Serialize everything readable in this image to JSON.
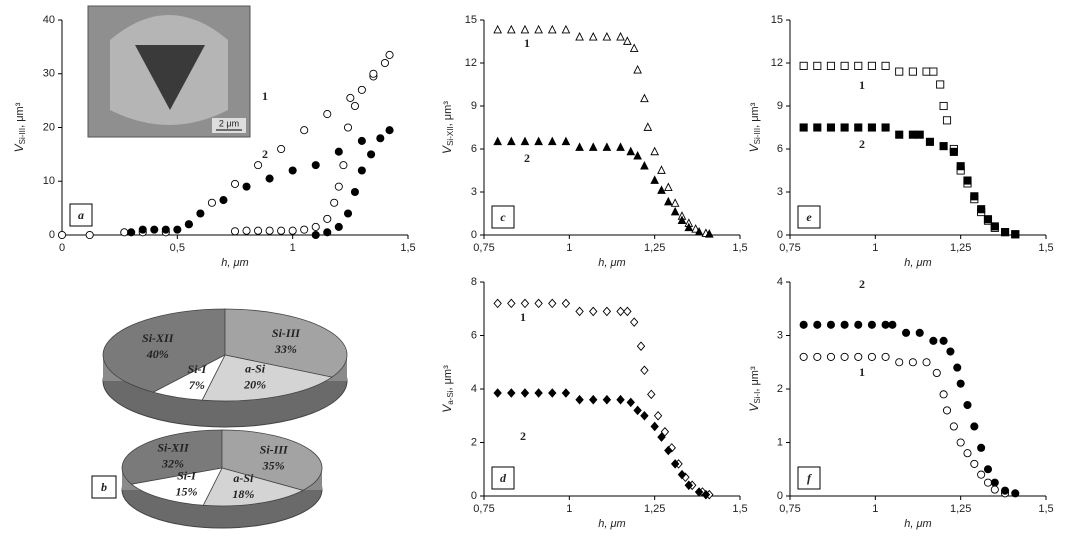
{
  "chart_data": [
    {
      "type": "scatter",
      "panel": "a",
      "xlabel": "h, μm",
      "ylabel": {
        "main": "V",
        "sub": "Si-III",
        "unit": ", μm³"
      },
      "inset_label": "2 μm",
      "xlim": [
        0,
        1.5
      ],
      "ylim": [
        0,
        40
      ],
      "xticks": [
        0,
        {
          "value": 0.5,
          "label": "0,5"
        },
        1,
        {
          "value": 1.5,
          "label": "1,5"
        }
      ],
      "yticks": [
        0,
        10,
        20,
        30,
        40
      ],
      "series": [
        {
          "name": "1",
          "marker": "circle",
          "filled": false,
          "color": "#000000",
          "x": [
            0,
            0.12,
            0.27,
            0.35,
            0.45,
            0.55,
            0.65,
            0.75,
            0.85,
            0.95,
            1.05,
            1.15,
            1.25,
            1.35,
            1.42,
            1.4,
            1.35,
            1.3,
            1.27,
            1.24,
            1.22,
            1.2,
            1.18,
            1.15,
            1.1,
            1.05,
            1.0,
            0.95,
            0.9,
            0.85,
            0.8,
            0.75
          ],
          "values": [
            0,
            0,
            0.5,
            0.5,
            0.5,
            2,
            6,
            9.5,
            13,
            16,
            19.5,
            22.5,
            25.5,
            29.5,
            33.5,
            32,
            30,
            27,
            24,
            20,
            13,
            9,
            6,
            3,
            1.5,
            1,
            0.8,
            0.8,
            0.8,
            0.8,
            0.8,
            0.7
          ]
        },
        {
          "name": "2",
          "marker": "circle",
          "filled": true,
          "color": "#000000",
          "x": [
            0.3,
            0.35,
            0.4,
            0.45,
            0.5,
            0.55,
            0.6,
            0.7,
            0.8,
            0.9,
            1.0,
            1.1,
            1.2,
            1.3,
            1.42,
            1.38,
            1.34,
            1.3,
            1.27,
            1.24,
            1.2,
            1.15,
            1.1
          ],
          "values": [
            0.5,
            1,
            1,
            1,
            1,
            2,
            4,
            6.5,
            9,
            10.5,
            12,
            13,
            15.5,
            17.5,
            19.5,
            18,
            15,
            12,
            8,
            4,
            1.5,
            0.5,
            0
          ]
        }
      ]
    },
    {
      "type": "pie",
      "panel": "b",
      "pies": [
        {
          "categories": [
            "Si-XII",
            "Si-III",
            "a-Si",
            "Si-I"
          ],
          "values": [
            40,
            33,
            20,
            7
          ],
          "value_labels": [
            "40%",
            "33%",
            "20%",
            "7%"
          ],
          "colors": [
            "#7a7a7a",
            "#a3a3a3",
            "#d4d4d4",
            "#ffffff"
          ]
        },
        {
          "categories": [
            "Si-XII",
            "Si-III",
            "a-Si",
            "Si-I"
          ],
          "values": [
            32,
            35,
            18,
            15
          ],
          "value_labels": [
            "32%",
            "35%",
            "18%",
            "15%"
          ],
          "colors": [
            "#7a7a7a",
            "#a3a3a3",
            "#d4d4d4",
            "#ffffff"
          ]
        }
      ]
    },
    {
      "type": "scatter",
      "panel": "c",
      "xlabel": "h, μm",
      "ylabel": {
        "main": "V",
        "sub": "Si-XII",
        "unit": ", μm³"
      },
      "xlim": [
        0.75,
        1.5
      ],
      "ylim": [
        0,
        15
      ],
      "xticks": [
        {
          "value": 0.75,
          "label": "0,75"
        },
        1,
        {
          "value": 1.25,
          "label": "1,25"
        },
        {
          "value": 1.5,
          "label": "1,5"
        }
      ],
      "yticks": [
        0,
        3,
        6,
        9,
        12,
        15
      ],
      "series": [
        {
          "name": "1",
          "marker": "triangle",
          "filled": false,
          "color": "#000000",
          "x": [
            0.79,
            0.83,
            0.87,
            0.91,
            0.95,
            0.99,
            1.03,
            1.07,
            1.11,
            1.15,
            1.17,
            1.19,
            1.2,
            1.22,
            1.23,
            1.25,
            1.27,
            1.29,
            1.31,
            1.33,
            1.35,
            1.37,
            1.4
          ],
          "values": [
            14.3,
            14.3,
            14.3,
            14.3,
            14.3,
            14.3,
            13.8,
            13.8,
            13.8,
            13.8,
            13.5,
            13,
            11.5,
            9.5,
            7.5,
            5.8,
            4.5,
            3.3,
            2.2,
            1.3,
            0.8,
            0.4,
            0.1
          ]
        },
        {
          "name": "2",
          "marker": "triangle",
          "filled": true,
          "color": "#000000",
          "x": [
            0.79,
            0.83,
            0.87,
            0.91,
            0.95,
            0.99,
            1.03,
            1.07,
            1.11,
            1.15,
            1.18,
            1.2,
            1.22,
            1.25,
            1.27,
            1.29,
            1.31,
            1.33,
            1.35,
            1.38,
            1.41
          ],
          "values": [
            6.5,
            6.5,
            6.5,
            6.5,
            6.5,
            6.5,
            6.1,
            6.1,
            6.1,
            6.1,
            5.8,
            5.5,
            4.8,
            3.8,
            3.1,
            2.3,
            1.6,
            1.0,
            0.5,
            0.2,
            0.05
          ]
        }
      ]
    },
    {
      "type": "scatter",
      "panel": "d",
      "xlabel": "h, μm",
      "ylabel": {
        "main": "V",
        "sub": "a-Si",
        "unit": ", μm³"
      },
      "xlim": [
        0.75,
        1.5
      ],
      "ylim": [
        0,
        8
      ],
      "xticks": [
        {
          "value": 0.75,
          "label": "0,75"
        },
        1,
        {
          "value": 1.25,
          "label": "1,25"
        },
        {
          "value": 1.5,
          "label": "1,5"
        }
      ],
      "yticks": [
        0,
        2,
        4,
        6,
        8
      ],
      "series": [
        {
          "name": "1",
          "marker": "diamond",
          "filled": false,
          "color": "#000000",
          "x": [
            0.79,
            0.83,
            0.87,
            0.91,
            0.95,
            0.99,
            1.03,
            1.07,
            1.11,
            1.15,
            1.17,
            1.19,
            1.21,
            1.22,
            1.24,
            1.26,
            1.28,
            1.3,
            1.32,
            1.34,
            1.36,
            1.39,
            1.41
          ],
          "values": [
            7.2,
            7.2,
            7.2,
            7.2,
            7.2,
            7.2,
            6.9,
            6.9,
            6.9,
            6.9,
            6.9,
            6.5,
            5.6,
            4.7,
            3.8,
            3.0,
            2.4,
            1.8,
            1.2,
            0.7,
            0.4,
            0.15,
            0.05
          ]
        },
        {
          "name": "2",
          "marker": "diamond",
          "filled": true,
          "color": "#000000",
          "x": [
            0.79,
            0.83,
            0.87,
            0.91,
            0.95,
            0.99,
            1.03,
            1.07,
            1.11,
            1.15,
            1.18,
            1.2,
            1.22,
            1.25,
            1.27,
            1.29,
            1.31,
            1.33,
            1.35,
            1.38,
            1.4
          ],
          "values": [
            3.85,
            3.85,
            3.85,
            3.85,
            3.85,
            3.85,
            3.6,
            3.6,
            3.6,
            3.6,
            3.5,
            3.2,
            3.0,
            2.6,
            2.2,
            1.7,
            1.2,
            0.8,
            0.4,
            0.15,
            0.05
          ]
        }
      ]
    },
    {
      "type": "scatter",
      "panel": "e",
      "xlabel": "h, μm",
      "ylabel": {
        "main": "V",
        "sub": "Si-III",
        "unit": ", μm³"
      },
      "xlim": [
        0.75,
        1.5
      ],
      "ylim": [
        0,
        15
      ],
      "xticks": [
        {
          "value": 0.75,
          "label": "0,75"
        },
        1,
        {
          "value": 1.25,
          "label": "1,25"
        },
        {
          "value": 1.5,
          "label": "1,5"
        }
      ],
      "yticks": [
        0,
        3,
        6,
        9,
        12,
        15
      ],
      "series": [
        {
          "name": "1",
          "marker": "square",
          "filled": false,
          "color": "#000000",
          "x": [
            0.79,
            0.83,
            0.87,
            0.91,
            0.95,
            0.99,
            1.03,
            1.07,
            1.11,
            1.15,
            1.17,
            1.19,
            1.2,
            1.21,
            1.23,
            1.25,
            1.27,
            1.29,
            1.31,
            1.33,
            1.35,
            1.38,
            1.41
          ],
          "values": [
            11.8,
            11.8,
            11.8,
            11.8,
            11.8,
            11.8,
            11.8,
            11.4,
            11.4,
            11.4,
            11.4,
            10.5,
            9,
            8,
            6.0,
            4.5,
            3.6,
            2.5,
            1.6,
            1.0,
            0.5,
            0.2,
            0.05
          ]
        },
        {
          "name": "2",
          "marker": "square",
          "filled": true,
          "color": "#000000",
          "x": [
            0.79,
            0.83,
            0.87,
            0.91,
            0.95,
            0.99,
            1.03,
            1.07,
            1.11,
            1.13,
            1.16,
            1.2,
            1.23,
            1.25,
            1.27,
            1.29,
            1.31,
            1.33,
            1.35,
            1.38,
            1.41
          ],
          "values": [
            7.5,
            7.5,
            7.5,
            7.5,
            7.5,
            7.5,
            7.5,
            7.0,
            7.0,
            7.0,
            6.5,
            6.2,
            5.8,
            4.8,
            3.8,
            2.7,
            1.8,
            1.1,
            0.6,
            0.2,
            0.05
          ]
        }
      ]
    },
    {
      "type": "scatter",
      "panel": "f",
      "xlabel": "h, μm",
      "ylabel": {
        "main": "V",
        "sub": "Si-I",
        "unit": ", μm³"
      },
      "xlim": [
        0.75,
        1.5
      ],
      "ylim": [
        0,
        4
      ],
      "xticks": [
        {
          "value": 0.75,
          "label": "0,75"
        },
        1,
        {
          "value": 1.25,
          "label": "1,25"
        },
        {
          "value": 1.5,
          "label": "1,5"
        }
      ],
      "yticks": [
        0,
        1,
        2,
        3,
        4
      ],
      "series": [
        {
          "name": "1",
          "marker": "circle",
          "filled": false,
          "color": "#000000",
          "x": [
            0.79,
            0.83,
            0.87,
            0.91,
            0.95,
            0.99,
            1.03,
            1.07,
            1.11,
            1.15,
            1.18,
            1.2,
            1.21,
            1.23,
            1.25,
            1.27,
            1.29,
            1.31,
            1.33,
            1.35,
            1.38
          ],
          "values": [
            2.6,
            2.6,
            2.6,
            2.6,
            2.6,
            2.6,
            2.6,
            2.5,
            2.5,
            2.5,
            2.3,
            1.9,
            1.6,
            1.3,
            1.0,
            0.8,
            0.6,
            0.4,
            0.25,
            0.12,
            0.05
          ]
        },
        {
          "name": "2",
          "marker": "circle",
          "filled": true,
          "color": "#000000",
          "x": [
            0.79,
            0.83,
            0.87,
            0.91,
            0.95,
            0.99,
            1.03,
            1.05,
            1.09,
            1.13,
            1.17,
            1.2,
            1.22,
            1.24,
            1.25,
            1.27,
            1.29,
            1.31,
            1.33,
            1.35,
            1.38,
            1.41
          ],
          "values": [
            3.2,
            3.2,
            3.2,
            3.2,
            3.2,
            3.2,
            3.2,
            3.2,
            3.05,
            3.05,
            2.9,
            2.9,
            2.7,
            2.4,
            2.1,
            1.7,
            1.3,
            0.9,
            0.5,
            0.25,
            0.1,
            0.05
          ]
        }
      ]
    }
  ]
}
